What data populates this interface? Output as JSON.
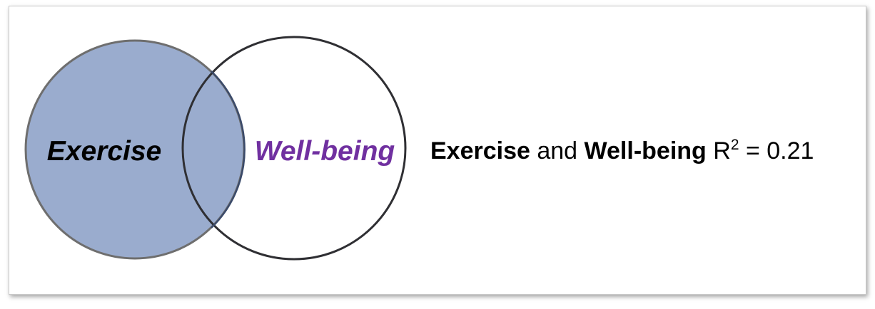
{
  "diagram": {
    "left_circle": {
      "label": "Exercise",
      "fill": "#9aacce",
      "stroke": "#6e6e6e",
      "label_color": "#000000"
    },
    "right_circle": {
      "label": "Well-being",
      "fill": "none",
      "stroke": "#2f2f33",
      "label_color": "#7030a0"
    },
    "overlap_stroke": "#3a4a6a"
  },
  "caption": {
    "term1": "Exercise",
    "connector": "and",
    "term2": "Well-being",
    "stat_symbol": "R",
    "stat_exponent": "2",
    "stat_value": "= 0.21"
  }
}
